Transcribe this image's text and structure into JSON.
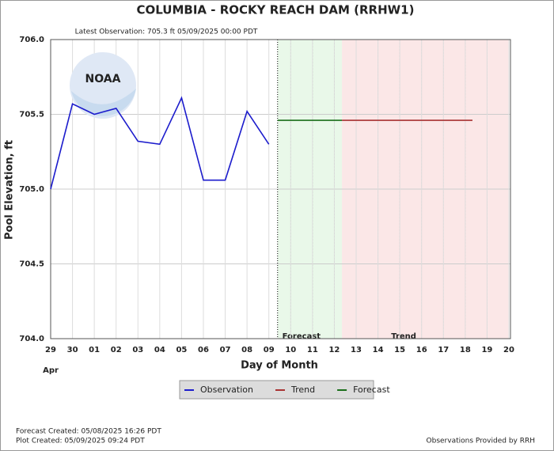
{
  "chart_data": {
    "type": "line",
    "title": "COLUMBIA - ROCKY REACH DAM  (RRHW1)",
    "subtitle": "Latest Observation: 705.3 ft 05/09/2025 00:00 PDT",
    "ylabel": "Pool Elevation, ft",
    "xlabel": "Day of Month",
    "x_month_label": "Apr",
    "logo_text": "NOAA",
    "xlim": [
      0,
      21
    ],
    "ylim": [
      704,
      706
    ],
    "xticks": [
      {
        "value": 0,
        "label": "29"
      },
      {
        "value": 1,
        "label": "30"
      },
      {
        "value": 2,
        "label": "01"
      },
      {
        "value": 3,
        "label": "02"
      },
      {
        "value": 4,
        "label": "03"
      },
      {
        "value": 5,
        "label": "04"
      },
      {
        "value": 6,
        "label": "05"
      },
      {
        "value": 7,
        "label": "06"
      },
      {
        "value": 8,
        "label": "07"
      },
      {
        "value": 9,
        "label": "08"
      },
      {
        "value": 10,
        "label": "09"
      },
      {
        "value": 11,
        "label": "10"
      },
      {
        "value": 12,
        "label": "11"
      },
      {
        "value": 13,
        "label": "12"
      },
      {
        "value": 14,
        "label": "13"
      },
      {
        "value": 15,
        "label": "14"
      },
      {
        "value": 16,
        "label": "15"
      },
      {
        "value": 17,
        "label": "16"
      },
      {
        "value": 18,
        "label": "17"
      },
      {
        "value": 19,
        "label": "18"
      },
      {
        "value": 20,
        "label": "19"
      },
      {
        "value": 21,
        "label": "20"
      }
    ],
    "yticks": [
      {
        "value": 704,
        "label": "704.0"
      },
      {
        "value": 704.5,
        "label": "704.5"
      },
      {
        "value": 705,
        "label": "705.0"
      },
      {
        "value": 705.5,
        "label": "705.5"
      },
      {
        "value": 706,
        "label": "706.0"
      }
    ],
    "grid": true,
    "regions": [
      {
        "name": "Forecast",
        "start": 10.4,
        "end": 13.35,
        "color": "#e9f8e9",
        "edge": "#3a9a3a"
      },
      {
        "name": "Trend",
        "start": 13.35,
        "end": 21,
        "color": "#fbe7e7",
        "edge": "#e0a0a0"
      }
    ],
    "series": [
      {
        "name": "Observation",
        "color": "#1c1ccc",
        "x": [
          0,
          1,
          2,
          3,
          4,
          5,
          6,
          7,
          8,
          9,
          10
        ],
        "values": [
          705.0,
          705.57,
          705.5,
          705.54,
          705.32,
          705.3,
          705.61,
          705.06,
          705.06,
          705.52,
          705.3
        ]
      },
      {
        "name": "Trend",
        "color": "#a83232",
        "x": [
          13.35,
          19.33
        ],
        "values": [
          705.46,
          705.46
        ]
      },
      {
        "name": "Forecast",
        "color": "#1a6e1a",
        "x": [
          10.4,
          13.35
        ],
        "values": [
          705.46,
          705.46
        ]
      }
    ],
    "footer_left": [
      "Forecast Created: 05/08/2025 16:26 PDT",
      "Plot Created: 05/09/2025 09:24 PDT"
    ],
    "footer_right": "Observations Provided by RRH"
  }
}
